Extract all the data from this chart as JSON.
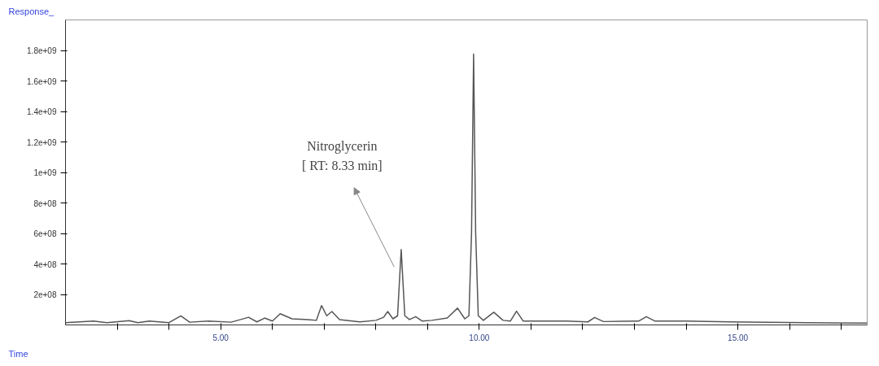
{
  "chart_data": {
    "type": "line",
    "xlabel": "Time",
    "ylabel": "Response_",
    "xlim": [
      2.0,
      17.5
    ],
    "ylim": [
      0,
      2000000000
    ],
    "xticks": [
      {
        "value": 3,
        "label": null
      },
      {
        "value": 4,
        "label": null
      },
      {
        "value": 5,
        "label": "5.00"
      },
      {
        "value": 6,
        "label": null
      },
      {
        "value": 7,
        "label": null
      },
      {
        "value": 8,
        "label": null
      },
      {
        "value": 9,
        "label": null
      },
      {
        "value": 10,
        "label": "10.00"
      },
      {
        "value": 11,
        "label": null
      },
      {
        "value": 12,
        "label": null
      },
      {
        "value": 13,
        "label": null
      },
      {
        "value": 14,
        "label": null
      },
      {
        "value": 15,
        "label": "15.00"
      },
      {
        "value": 16,
        "label": null
      },
      {
        "value": 17,
        "label": null
      }
    ],
    "yticks": [
      {
        "value": 200000000,
        "label": "2e+08"
      },
      {
        "value": 400000000,
        "label": "4e+08"
      },
      {
        "value": 600000000,
        "label": "6e+08"
      },
      {
        "value": 800000000,
        "label": "8e+08"
      },
      {
        "value": 1000000000,
        "label": "1e+09"
      },
      {
        "value": 1200000000,
        "label": "1.2e+09"
      },
      {
        "value": 1400000000,
        "label": "1.4e+09"
      },
      {
        "value": 1600000000,
        "label": "1.6e+09"
      },
      {
        "value": 1800000000,
        "label": "1.8e+09"
      }
    ],
    "grid": false,
    "marker": "none",
    "line_style": "solid",
    "annotations": [
      "Nitroglycerin\n[ RT: 8.33 min]"
    ],
    "series": [
      {
        "color": "#555555",
        "x": [
          2.0,
          2.54,
          2.8,
          3.23,
          3.4,
          3.62,
          4.0,
          4.23,
          4.4,
          4.77,
          5.2,
          5.54,
          5.7,
          5.85,
          6.0,
          6.15,
          6.38,
          6.69,
          6.85,
          6.95,
          7.05,
          7.15,
          7.3,
          7.69,
          8.0,
          8.15,
          8.23,
          8.33,
          8.42,
          8.49,
          8.56,
          8.65,
          8.77,
          8.9,
          9.08,
          9.38,
          9.58,
          9.72,
          9.8,
          9.85,
          9.89,
          9.93,
          9.98,
          10.08,
          10.28,
          10.46,
          10.6,
          10.72,
          10.85,
          11.69,
          12.1,
          12.23,
          12.4,
          13.08,
          13.23,
          13.4,
          14.0,
          14.85,
          16.31,
          17.5
        ],
        "values": [
          15000000,
          25000000,
          15000000,
          28000000,
          15000000,
          25000000,
          15000000,
          59000000,
          18000000,
          25000000,
          18000000,
          50000000,
          20000000,
          45000000,
          25000000,
          73000000,
          40000000,
          35000000,
          30000000,
          127000000,
          60000000,
          88000000,
          35000000,
          20000000,
          30000000,
          50000000,
          88000000,
          40000000,
          60000000,
          494000000,
          60000000,
          35000000,
          54000000,
          25000000,
          30000000,
          45000000,
          110000000,
          40000000,
          60000000,
          600000000,
          1776000000,
          600000000,
          60000000,
          30000000,
          83000000,
          30000000,
          25000000,
          90000000,
          25000000,
          25000000,
          20000000,
          49000000,
          22000000,
          25000000,
          54000000,
          25000000,
          25000000,
          20000000,
          15000000,
          12000000
        ]
      }
    ]
  }
}
